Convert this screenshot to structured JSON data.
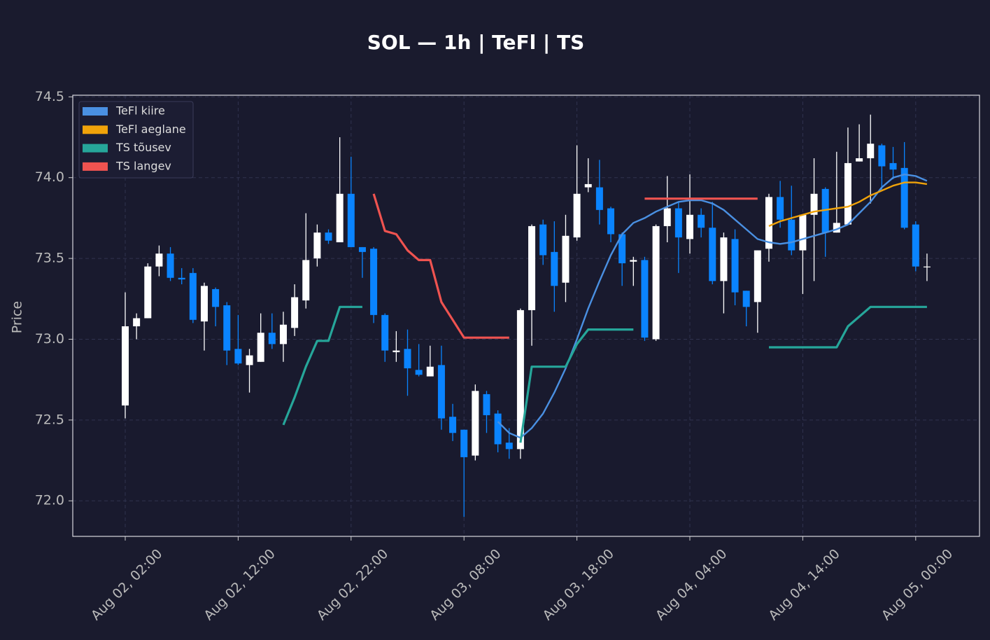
{
  "chart_data": {
    "type": "candlestick",
    "title": "SOL — 1h  |  TeFl  |  TS",
    "ylabel": "Price",
    "x": [
      "Aug 02, 02:00",
      "Aug 02, 03:00",
      "Aug 02, 04:00",
      "Aug 02, 05:00",
      "Aug 02, 06:00",
      "Aug 02, 07:00",
      "Aug 02, 08:00",
      "Aug 02, 09:00",
      "Aug 02, 10:00",
      "Aug 02, 11:00",
      "Aug 02, 12:00",
      "Aug 02, 13:00",
      "Aug 02, 14:00",
      "Aug 02, 15:00",
      "Aug 02, 16:00",
      "Aug 02, 17:00",
      "Aug 02, 18:00",
      "Aug 02, 19:00",
      "Aug 02, 20:00",
      "Aug 02, 21:00",
      "Aug 02, 22:00",
      "Aug 02, 23:00",
      "Aug 03, 00:00",
      "Aug 03, 01:00",
      "Aug 03, 02:00",
      "Aug 03, 03:00",
      "Aug 03, 04:00",
      "Aug 03, 05:00",
      "Aug 03, 06:00",
      "Aug 03, 07:00",
      "Aug 03, 08:00",
      "Aug 03, 09:00",
      "Aug 03, 10:00",
      "Aug 03, 11:00",
      "Aug 03, 12:00",
      "Aug 03, 13:00",
      "Aug 03, 14:00",
      "Aug 03, 15:00",
      "Aug 03, 16:00",
      "Aug 03, 17:00",
      "Aug 03, 18:00",
      "Aug 03, 19:00",
      "Aug 03, 20:00",
      "Aug 03, 21:00",
      "Aug 03, 22:00",
      "Aug 03, 23:00",
      "Aug 04, 00:00",
      "Aug 04, 01:00",
      "Aug 04, 02:00",
      "Aug 04, 03:00",
      "Aug 04, 04:00",
      "Aug 04, 05:00",
      "Aug 04, 06:00",
      "Aug 04, 07:00",
      "Aug 04, 08:00",
      "Aug 04, 09:00",
      "Aug 04, 10:00",
      "Aug 04, 11:00",
      "Aug 04, 12:00",
      "Aug 04, 13:00",
      "Aug 04, 14:00",
      "Aug 04, 15:00",
      "Aug 04, 16:00",
      "Aug 04, 17:00",
      "Aug 04, 18:00",
      "Aug 04, 19:00",
      "Aug 04, 20:00",
      "Aug 04, 21:00",
      "Aug 04, 22:00",
      "Aug 04, 23:00",
      "Aug 05, 00:00",
      "Aug 05, 01:00"
    ],
    "open": [
      72.59,
      73.08,
      73.13,
      73.45,
      73.53,
      73.38,
      73.41,
      73.11,
      73.31,
      73.21,
      72.94,
      72.84,
      72.86,
      73.04,
      72.97,
      73.07,
      73.24,
      73.5,
      73.66,
      73.6,
      73.9,
      73.57,
      73.56,
      73.15,
      72.92,
      72.94,
      72.81,
      72.77,
      72.84,
      72.52,
      72.44,
      72.28,
      72.66,
      72.54,
      72.36,
      72.32,
      73.18,
      73.71,
      73.54,
      73.35,
      73.63,
      73.94,
      73.94,
      73.81,
      73.65,
      73.48,
      73.49,
      73.0,
      73.7,
      73.81,
      73.62,
      73.77,
      73.69,
      73.36,
      73.62,
      73.3,
      73.23,
      73.56,
      73.88,
      73.74,
      73.55,
      73.77,
      73.93,
      73.66,
      73.71,
      74.1,
      74.12,
      74.2,
      74.09,
      74.06,
      73.71,
      73.45
    ],
    "high": [
      73.29,
      73.16,
      73.47,
      73.58,
      73.57,
      73.44,
      73.44,
      73.35,
      73.32,
      73.23,
      73.15,
      72.94,
      73.16,
      73.16,
      73.17,
      73.34,
      73.78,
      73.71,
      73.68,
      74.25,
      74.13,
      73.57,
      73.57,
      73.16,
      73.05,
      73.06,
      72.97,
      72.96,
      72.96,
      72.6,
      72.44,
      72.72,
      72.68,
      72.56,
      72.45,
      73.19,
      73.71,
      73.74,
      73.73,
      73.77,
      74.2,
      74.12,
      74.11,
      73.82,
      73.66,
      73.51,
      73.51,
      73.71,
      74.01,
      73.85,
      74.02,
      73.81,
      73.85,
      73.66,
      73.68,
      73.3,
      73.55,
      73.9,
      73.98,
      73.95,
      73.77,
      74.12,
      73.94,
      74.16,
      74.31,
      74.33,
      74.39,
      74.21,
      74.19,
      74.22,
      73.73,
      73.53
    ],
    "low": [
      72.51,
      73.0,
      73.13,
      73.39,
      73.36,
      73.34,
      73.1,
      72.93,
      73.08,
      72.84,
      72.84,
      72.67,
      72.86,
      72.94,
      72.86,
      73.02,
      73.19,
      73.45,
      73.59,
      73.6,
      73.57,
      73.38,
      73.1,
      72.86,
      72.86,
      72.65,
      72.77,
      72.77,
      72.44,
      72.37,
      71.9,
      72.25,
      72.42,
      72.3,
      72.26,
      72.26,
      72.96,
      73.46,
      73.17,
      73.23,
      73.61,
      73.91,
      73.71,
      73.6,
      73.33,
      73.33,
      72.99,
      72.99,
      73.6,
      73.41,
      73.53,
      73.63,
      73.34,
      73.16,
      73.21,
      73.08,
      73.04,
      73.48,
      73.69,
      73.52,
      73.28,
      73.36,
      73.51,
      73.66,
      73.71,
      74.1,
      73.84,
      73.92,
      73.99,
      73.68,
      73.42,
      73.36
    ],
    "close": [
      73.08,
      73.13,
      73.45,
      73.53,
      73.38,
      73.37,
      73.12,
      73.33,
      73.2,
      72.93,
      72.85,
      72.9,
      73.04,
      72.97,
      73.09,
      73.26,
      73.49,
      73.66,
      73.61,
      73.9,
      73.57,
      73.54,
      73.15,
      72.93,
      72.93,
      72.82,
      72.78,
      72.83,
      72.51,
      72.42,
      72.27,
      72.68,
      72.53,
      72.35,
      72.32,
      73.18,
      73.7,
      73.52,
      73.33,
      73.64,
      73.9,
      73.96,
      73.8,
      73.65,
      73.47,
      73.49,
      73.01,
      73.7,
      73.81,
      73.63,
      73.77,
      73.69,
      73.36,
      73.63,
      73.29,
      73.2,
      73.55,
      73.88,
      73.74,
      73.55,
      73.77,
      73.9,
      73.66,
      73.72,
      74.09,
      74.12,
      74.21,
      74.07,
      74.05,
      73.69,
      73.45,
      73.45
    ],
    "up_color": "#ffffff",
    "down_color": "#0a84ff",
    "series": [
      {
        "name": "TeFl kiire",
        "color": "#4a90e2",
        "values": [
          null,
          null,
          null,
          null,
          null,
          null,
          null,
          null,
          null,
          null,
          null,
          null,
          null,
          null,
          null,
          null,
          null,
          null,
          null,
          null,
          null,
          null,
          null,
          null,
          null,
          null,
          null,
          null,
          null,
          null,
          null,
          null,
          null,
          72.49,
          72.42,
          72.39,
          72.45,
          72.54,
          72.67,
          72.82,
          73.0,
          73.19,
          73.36,
          73.52,
          73.65,
          73.72,
          73.75,
          73.79,
          73.82,
          73.85,
          73.86,
          73.86,
          73.84,
          73.8,
          73.74,
          73.68,
          73.62,
          73.6,
          73.59,
          73.6,
          73.62,
          73.64,
          73.66,
          73.68,
          73.71,
          73.78,
          73.85,
          73.94,
          74.0,
          74.02,
          74.01,
          73.98
        ]
      },
      {
        "name": "TeFl aeglane",
        "color": "#f0a30a",
        "values": [
          null,
          null,
          null,
          null,
          null,
          null,
          null,
          null,
          null,
          null,
          null,
          null,
          null,
          null,
          null,
          null,
          null,
          null,
          null,
          null,
          null,
          null,
          null,
          null,
          null,
          null,
          null,
          null,
          null,
          null,
          null,
          null,
          null,
          null,
          null,
          null,
          null,
          null,
          null,
          null,
          null,
          null,
          null,
          null,
          null,
          null,
          null,
          null,
          null,
          null,
          null,
          null,
          null,
          null,
          null,
          null,
          null,
          73.7,
          73.73,
          73.75,
          73.77,
          73.79,
          73.8,
          73.81,
          73.82,
          73.85,
          73.89,
          73.92,
          73.95,
          73.97,
          73.97,
          73.96
        ]
      },
      {
        "name": "TS tõusev",
        "color": "#26a69a",
        "values": [
          null,
          null,
          null,
          null,
          null,
          null,
          null,
          null,
          null,
          null,
          null,
          null,
          null,
          null,
          72.47,
          72.64,
          72.83,
          72.99,
          72.99,
          73.2,
          73.2,
          73.2,
          null,
          null,
          null,
          null,
          null,
          null,
          null,
          null,
          null,
          null,
          null,
          null,
          null,
          72.36,
          72.83,
          72.83,
          72.83,
          72.83,
          72.97,
          73.06,
          73.06,
          73.06,
          73.06,
          73.06,
          null,
          null,
          null,
          null,
          null,
          null,
          null,
          null,
          null,
          null,
          null,
          72.95,
          72.95,
          72.95,
          72.95,
          72.95,
          72.95,
          72.95,
          73.08,
          73.14,
          73.2,
          73.2,
          73.2,
          73.2,
          73.2,
          73.2
        ]
      },
      {
        "name": "TS langev",
        "color": "#ef5350",
        "values": [
          null,
          null,
          null,
          null,
          null,
          null,
          null,
          null,
          null,
          null,
          null,
          null,
          null,
          null,
          null,
          null,
          null,
          null,
          null,
          null,
          null,
          null,
          73.9,
          73.67,
          73.65,
          73.55,
          73.49,
          73.49,
          73.23,
          73.12,
          73.01,
          73.01,
          73.01,
          73.01,
          73.01,
          null,
          null,
          null,
          null,
          null,
          null,
          null,
          null,
          null,
          null,
          null,
          73.87,
          73.87,
          73.87,
          73.87,
          73.87,
          73.87,
          73.87,
          73.87,
          73.87,
          73.87,
          73.87,
          null,
          null,
          null,
          null,
          null,
          null,
          null,
          null,
          null,
          null,
          null,
          null,
          null,
          null,
          null
        ]
      }
    ],
    "xticks": [
      "Aug 02, 02:00",
      "Aug 02, 12:00",
      "Aug 02, 22:00",
      "Aug 03, 08:00",
      "Aug 03, 18:00",
      "Aug 04, 04:00",
      "Aug 04, 14:00",
      "Aug 05, 00:00"
    ],
    "ylim": [
      71.78,
      74.51
    ],
    "yticks": [
      {
        "value": 72.0,
        "label": "72.0"
      },
      72.5,
      {
        "value": 73.0,
        "label": "73.0"
      },
      73.5,
      {
        "value": 74.0,
        "label": "74.0"
      },
      74.5
    ],
    "grid": true,
    "legend": "upper left"
  }
}
